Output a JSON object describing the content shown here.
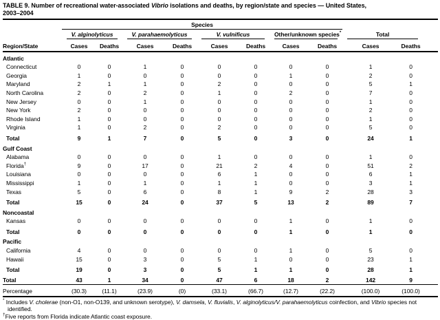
{
  "title": {
    "part1": "TABLE 9. Number of recreational water-associated ",
    "italic": "Vibrio",
    "part2": " isolations and deaths, by region/state and species — United States,",
    "line2": "2003–2004"
  },
  "header": {
    "species_label": "Species",
    "region_state_label": "Region/State",
    "cases_label": "Cases",
    "deaths_label": "Deaths",
    "groups": [
      {
        "name": "V. alginolyticus",
        "italic": true,
        "sup": ""
      },
      {
        "name": "V. parahaemolyticus",
        "italic": true,
        "sup": ""
      },
      {
        "name": "V. vulnificus",
        "italic": true,
        "sup": ""
      },
      {
        "name": "Other/unknown species",
        "italic": false,
        "sup": "*"
      },
      {
        "name": "Total",
        "italic": false,
        "sup": ""
      }
    ]
  },
  "table": {
    "sections": [
      {
        "name": "Atlantic",
        "rows": [
          {
            "label": "Connecticut",
            "sup": "",
            "values": [
              "0",
              "0",
              "1",
              "0",
              "0",
              "0",
              "0",
              "0",
              "1",
              "0"
            ]
          },
          {
            "label": "Georgia",
            "sup": "",
            "values": [
              "1",
              "0",
              "0",
              "0",
              "0",
              "0",
              "1",
              "0",
              "2",
              "0"
            ]
          },
          {
            "label": "Maryland",
            "sup": "",
            "values": [
              "2",
              "1",
              "1",
              "0",
              "2",
              "0",
              "0",
              "0",
              "5",
              "1"
            ]
          },
          {
            "label": "North Carolina",
            "sup": "",
            "values": [
              "2",
              "0",
              "2",
              "0",
              "1",
              "0",
              "2",
              "0",
              "7",
              "0"
            ]
          },
          {
            "label": "New Jersey",
            "sup": "",
            "values": [
              "0",
              "0",
              "1",
              "0",
              "0",
              "0",
              "0",
              "0",
              "1",
              "0"
            ]
          },
          {
            "label": "New York",
            "sup": "",
            "values": [
              "2",
              "0",
              "0",
              "0",
              "0",
              "0",
              "0",
              "0",
              "2",
              "0"
            ]
          },
          {
            "label": "Rhode Island",
            "sup": "",
            "values": [
              "1",
              "0",
              "0",
              "0",
              "0",
              "0",
              "0",
              "0",
              "1",
              "0"
            ]
          },
          {
            "label": "Virginia",
            "sup": "",
            "values": [
              "1",
              "0",
              "2",
              "0",
              "2",
              "0",
              "0",
              "0",
              "5",
              "0"
            ]
          }
        ],
        "total": {
          "label": "Total",
          "values": [
            "9",
            "1",
            "7",
            "0",
            "5",
            "0",
            "3",
            "0",
            "24",
            "1"
          ]
        }
      },
      {
        "name": "Gulf Coast",
        "rows": [
          {
            "label": "Alabama",
            "sup": "",
            "values": [
              "0",
              "0",
              "0",
              "0",
              "1",
              "0",
              "0",
              "0",
              "1",
              "0"
            ]
          },
          {
            "label": "Florida",
            "sup": "†",
            "values": [
              "9",
              "0",
              "17",
              "0",
              "21",
              "2",
              "4",
              "0",
              "51",
              "2"
            ]
          },
          {
            "label": "Louisiana",
            "sup": "",
            "values": [
              "0",
              "0",
              "0",
              "0",
              "6",
              "1",
              "0",
              "0",
              "6",
              "1"
            ]
          },
          {
            "label": "Mississippi",
            "sup": "",
            "values": [
              "1",
              "0",
              "1",
              "0",
              "1",
              "1",
              "0",
              "0",
              "3",
              "1"
            ]
          },
          {
            "label": "Texas",
            "sup": "",
            "values": [
              "5",
              "0",
              "6",
              "0",
              "8",
              "1",
              "9",
              "2",
              "28",
              "3"
            ]
          }
        ],
        "total": {
          "label": "Total",
          "values": [
            "15",
            "0",
            "24",
            "0",
            "37",
            "5",
            "13",
            "2",
            "89",
            "7"
          ]
        }
      },
      {
        "name": "Noncoastal",
        "rows": [
          {
            "label": "Kansas",
            "sup": "",
            "values": [
              "0",
              "0",
              "0",
              "0",
              "0",
              "0",
              "1",
              "0",
              "1",
              "0"
            ]
          }
        ],
        "total": {
          "label": "Total",
          "values": [
            "0",
            "0",
            "0",
            "0",
            "0",
            "0",
            "1",
            "0",
            "1",
            "0"
          ]
        }
      },
      {
        "name": "Pacific",
        "rows": [
          {
            "label": "California",
            "sup": "",
            "values": [
              "4",
              "0",
              "0",
              "0",
              "0",
              "0",
              "1",
              "0",
              "5",
              "0"
            ]
          },
          {
            "label": "Hawaii",
            "sup": "",
            "values": [
              "15",
              "0",
              "3",
              "0",
              "5",
              "1",
              "0",
              "0",
              "23",
              "1"
            ]
          }
        ],
        "total": {
          "label": "Total",
          "values": [
            "19",
            "0",
            "3",
            "0",
            "5",
            "1",
            "1",
            "0",
            "28",
            "1"
          ]
        }
      }
    ],
    "grand_total": {
      "label": "Total",
      "values": [
        "43",
        "1",
        "34",
        "0",
        "47",
        "6",
        "18",
        "2",
        "142",
        "9"
      ]
    },
    "percentage": {
      "label": "Percentage",
      "values": [
        "(30.3)",
        "(11.1)",
        "(23.9)",
        "(0)",
        "(33.1)",
        "(66.7)",
        "(12.7)",
        "(22.2)",
        "(100.0)",
        "(100.0)"
      ]
    }
  },
  "footnotes": [
    {
      "marker": "*",
      "segments": [
        {
          "text": " Includes ",
          "italic": false
        },
        {
          "text": "V. cholerae",
          "italic": true
        },
        {
          "text": " (non-O1, non-O139, and unknown serotype), ",
          "italic": false
        },
        {
          "text": "V. damsela",
          "italic": true
        },
        {
          "text": ", ",
          "italic": false
        },
        {
          "text": "V. fluvialis",
          "italic": true
        },
        {
          "text": ", ",
          "italic": false
        },
        {
          "text": "V. alginolyticus/V. parahaemolyticus",
          "italic": true
        },
        {
          "text": " coinfection, and ",
          "italic": false
        },
        {
          "text": "Vibrio",
          "italic": true
        },
        {
          "text": " species not identified.",
          "italic": false
        }
      ]
    },
    {
      "marker": "†",
      "segments": [
        {
          "text": "Five reports from Florida indicate Atlantic coast exposure.",
          "italic": false
        }
      ]
    }
  ]
}
